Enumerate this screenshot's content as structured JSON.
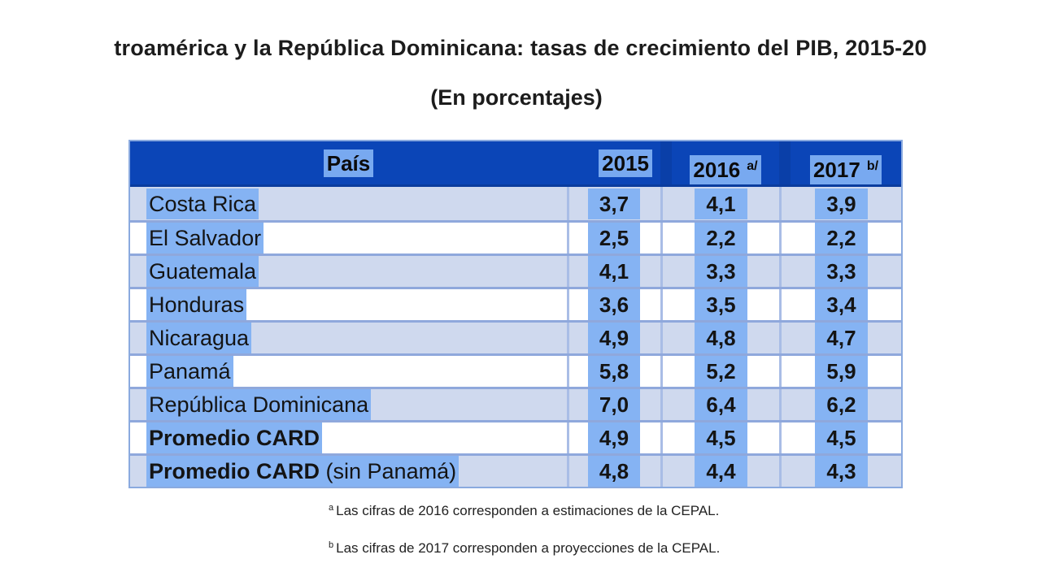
{
  "title": "troamérica y la República Dominicana: tasas de crecimiento del PIB, 2015-20",
  "subtitle": "(En porcentajes)",
  "table": {
    "headers": {
      "country": "País",
      "y2015": "2015",
      "y2016": "2016",
      "y2016_mark": "a/",
      "y2017": "2017",
      "y2017_mark": "b/"
    },
    "rows": [
      {
        "country": "Costa Rica",
        "suffix": "",
        "v2015": "3,7",
        "v2016": "4,1",
        "v2017": "3,9",
        "bold": false
      },
      {
        "country": "El Salvador",
        "suffix": "",
        "v2015": "2,5",
        "v2016": "2,2",
        "v2017": "2,2",
        "bold": false
      },
      {
        "country": "Guatemala",
        "suffix": "",
        "v2015": "4,1",
        "v2016": "3,3",
        "v2017": "3,3",
        "bold": false
      },
      {
        "country": "Honduras",
        "suffix": "",
        "v2015": "3,6",
        "v2016": "3,5",
        "v2017": "3,4",
        "bold": false
      },
      {
        "country": "Nicaragua",
        "suffix": "",
        "v2015": "4,9",
        "v2016": "4,8",
        "v2017": "4,7",
        "bold": false
      },
      {
        "country": "Panamá",
        "suffix": "",
        "v2015": "5,8",
        "v2016": "5,2",
        "v2017": "5,9",
        "bold": false
      },
      {
        "country": "República Dominicana",
        "suffix": "",
        "v2015": "7,0",
        "v2016": "6,4",
        "v2017": "6,2",
        "bold": false
      },
      {
        "country": "Promedio CARD",
        "suffix": "",
        "v2015": "4,9",
        "v2016": "4,5",
        "v2017": "4,5",
        "bold": true
      },
      {
        "country": "Promedio CARD",
        "suffix": " (sin Panamá)",
        "v2015": "4,8",
        "v2016": "4,4",
        "v2017": "4,3",
        "bold": true
      }
    ]
  },
  "notes": [
    {
      "mark": "a",
      "text": "Las cifras de 2016 corresponden a estimaciones de la CEPAL."
    },
    {
      "mark": "b",
      "text": "Las cifras de 2017 corresponden a proyecciones de la CEPAL."
    }
  ],
  "colors": {
    "header_bg": "#0b45b7",
    "highlight": "#85b3f3",
    "alt_row": "#cfd9ee",
    "grid": "#8fa8dc"
  }
}
